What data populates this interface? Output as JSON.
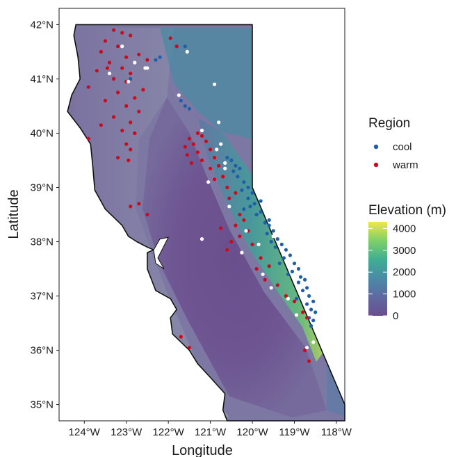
{
  "chart_data": {
    "type": "map",
    "xlabel": "Longitude",
    "ylabel": "Latitude",
    "xlim": [
      -124.6,
      -117.8
    ],
    "ylim": [
      34.7,
      42.3
    ],
    "x_ticks": [
      {
        "value": -124,
        "label": "124°W"
      },
      {
        "value": -123,
        "label": "123°W"
      },
      {
        "value": -122,
        "label": "122°W"
      },
      {
        "value": -121,
        "label": "121°W"
      },
      {
        "value": -120,
        "label": "120°W"
      },
      {
        "value": -119,
        "label": "119°W"
      },
      {
        "value": -118,
        "label": "118°W"
      }
    ],
    "y_ticks": [
      {
        "value": 35,
        "label": "35°N"
      },
      {
        "value": 36,
        "label": "36°N"
      },
      {
        "value": 37,
        "label": "37°N"
      },
      {
        "value": 38,
        "label": "38°N"
      },
      {
        "value": 39,
        "label": "39°N"
      },
      {
        "value": 40,
        "label": "40°N"
      },
      {
        "value": 41,
        "label": "41°N"
      },
      {
        "value": 42,
        "label": "42°N"
      }
    ],
    "grid": false,
    "legend_region": {
      "title": "Region",
      "entries": [
        {
          "label": "cool",
          "color": "#1f5fa8"
        },
        {
          "label": "warm",
          "color": "#cc0a1e"
        }
      ]
    },
    "legend_elevation": {
      "title": "Elevation (m)",
      "range": [
        0,
        4300
      ],
      "ticks": [
        {
          "value": 0,
          "label": "0"
        },
        {
          "value": 1000,
          "label": "1000"
        },
        {
          "value": 2000,
          "label": "2000"
        },
        {
          "value": 3000,
          "label": "3000"
        },
        {
          "value": 4000,
          "label": "4000"
        }
      ],
      "colors": [
        "#6b4e8f",
        "#5e6aa0",
        "#4a8ba6",
        "#3fae93",
        "#7fd068",
        "#f0e64a"
      ]
    },
    "series": [
      {
        "name": "cool",
        "color": "#1f5fa8",
        "points": [
          [
            -121.8,
            41.6
          ],
          [
            -121.6,
            41.6
          ],
          [
            -122.2,
            41.4
          ],
          [
            -122.3,
            41.35
          ],
          [
            -122.9,
            41.0
          ],
          [
            -121.7,
            40.6
          ],
          [
            -121.5,
            40.45
          ],
          [
            -121.6,
            40.5
          ],
          [
            -120.6,
            39.55
          ],
          [
            -120.5,
            39.5
          ],
          [
            -120.4,
            39.4
          ],
          [
            -120.3,
            39.35
          ],
          [
            -120.45,
            39.3
          ],
          [
            -120.2,
            39.1
          ],
          [
            -120.1,
            39.0
          ],
          [
            -120.25,
            38.95
          ],
          [
            -120.0,
            38.9
          ],
          [
            -120.1,
            38.8
          ],
          [
            -119.95,
            38.7
          ],
          [
            -120.05,
            38.65
          ],
          [
            -119.8,
            38.55
          ],
          [
            -119.9,
            38.5
          ],
          [
            -119.7,
            38.35
          ],
          [
            -119.6,
            38.3
          ],
          [
            -119.5,
            38.2
          ],
          [
            -119.65,
            38.15
          ],
          [
            -119.4,
            38.05
          ],
          [
            -119.3,
            37.95
          ],
          [
            -119.45,
            37.9
          ],
          [
            -119.2,
            37.85
          ],
          [
            -119.1,
            37.75
          ],
          [
            -119.25,
            37.7
          ],
          [
            -119.0,
            37.6
          ],
          [
            -118.9,
            37.5
          ],
          [
            -119.05,
            37.45
          ],
          [
            -118.85,
            37.35
          ],
          [
            -118.75,
            37.3
          ],
          [
            -118.9,
            37.25
          ],
          [
            -118.7,
            37.15
          ],
          [
            -118.8,
            37.1
          ],
          [
            -118.65,
            37.0
          ],
          [
            -118.55,
            36.9
          ],
          [
            -118.7,
            36.85
          ],
          [
            -118.6,
            36.75
          ],
          [
            -118.5,
            36.7
          ],
          [
            -118.65,
            36.6
          ],
          [
            -118.55,
            36.55
          ],
          [
            -118.6,
            36.45
          ],
          [
            -119.6,
            38.4
          ],
          [
            -120.2,
            38.6
          ],
          [
            -119.35,
            37.6
          ],
          [
            -119.15,
            37.4
          ],
          [
            -119.55,
            38.0
          ],
          [
            -118.95,
            36.95
          ],
          [
            -119.8,
            38.75
          ],
          [
            -120.35,
            39.2
          ]
        ]
      },
      {
        "name": "warm",
        "color": "#cc0a1e",
        "points": [
          [
            -123.3,
            41.9
          ],
          [
            -123.1,
            41.85
          ],
          [
            -122.9,
            41.8
          ],
          [
            -123.5,
            41.7
          ],
          [
            -123.2,
            41.6
          ],
          [
            -123.6,
            41.5
          ],
          [
            -123.0,
            41.4
          ],
          [
            -122.7,
            41.45
          ],
          [
            -122.5,
            41.35
          ],
          [
            -123.4,
            41.3
          ],
          [
            -123.1,
            41.2
          ],
          [
            -123.7,
            41.15
          ],
          [
            -122.9,
            41.1
          ],
          [
            -123.3,
            41.0
          ],
          [
            -123.0,
            40.95
          ],
          [
            -123.9,
            40.85
          ],
          [
            -122.6,
            40.8
          ],
          [
            -123.2,
            40.75
          ],
          [
            -122.8,
            40.65
          ],
          [
            -123.5,
            40.6
          ],
          [
            -123.0,
            40.5
          ],
          [
            -122.7,
            40.4
          ],
          [
            -123.3,
            40.3
          ],
          [
            -122.9,
            40.2
          ],
          [
            -123.6,
            40.15
          ],
          [
            -123.1,
            40.05
          ],
          [
            -122.8,
            40.0
          ],
          [
            -123.9,
            39.9
          ],
          [
            -123.0,
            39.8
          ],
          [
            -122.9,
            39.7
          ],
          [
            -123.2,
            39.55
          ],
          [
            -122.95,
            39.5
          ],
          [
            -122.7,
            38.7
          ],
          [
            -122.9,
            38.65
          ],
          [
            -122.5,
            38.5
          ],
          [
            -121.3,
            40.0
          ],
          [
            -121.2,
            39.95
          ],
          [
            -121.5,
            39.9
          ],
          [
            -121.1,
            39.85
          ],
          [
            -121.4,
            39.8
          ],
          [
            -121.6,
            39.75
          ],
          [
            -121.0,
            39.7
          ],
          [
            -121.3,
            39.65
          ],
          [
            -121.55,
            39.6
          ],
          [
            -120.9,
            39.55
          ],
          [
            -121.2,
            39.5
          ],
          [
            -121.45,
            39.45
          ],
          [
            -120.8,
            39.4
          ],
          [
            -121.0,
            39.35
          ],
          [
            -120.7,
            39.2
          ],
          [
            -120.9,
            39.15
          ],
          [
            -120.6,
            39.0
          ],
          [
            -120.4,
            38.9
          ],
          [
            -120.55,
            38.8
          ],
          [
            -120.3,
            38.5
          ],
          [
            -120.2,
            38.4
          ],
          [
            -120.4,
            38.3
          ],
          [
            -120.1,
            38.2
          ],
          [
            -120.3,
            38.1
          ],
          [
            -120.5,
            38.0
          ],
          [
            -120.0,
            37.95
          ],
          [
            -120.6,
            37.85
          ],
          [
            -119.8,
            37.7
          ],
          [
            -119.6,
            37.55
          ],
          [
            -119.9,
            37.5
          ],
          [
            -119.7,
            37.3
          ],
          [
            -119.4,
            37.2
          ],
          [
            -119.2,
            37.0
          ],
          [
            -119.0,
            36.9
          ],
          [
            -118.8,
            36.7
          ],
          [
            -118.7,
            36.6
          ],
          [
            -118.75,
            36.0
          ],
          [
            -118.65,
            35.8
          ],
          [
            -121.5,
            36.05
          ],
          [
            -121.7,
            36.25
          ],
          [
            -121.95,
            41.75
          ],
          [
            -121.8,
            41.6
          ],
          [
            -123.45,
            41.2
          ],
          [
            -120.75,
            38.25
          ]
        ]
      },
      {
        "name": "",
        "color": "#ffffff",
        "points": [
          [
            -123.1,
            41.6
          ],
          [
            -122.8,
            41.3
          ],
          [
            -122.5,
            41.2
          ],
          [
            -123.4,
            41.1
          ],
          [
            -122.95,
            40.95
          ],
          [
            -121.55,
            41.5
          ],
          [
            -120.9,
            40.9
          ],
          [
            -121.75,
            40.7
          ],
          [
            -120.8,
            40.2
          ],
          [
            -121.2,
            40.05
          ],
          [
            -120.75,
            39.8
          ],
          [
            -120.85,
            39.7
          ],
          [
            -120.65,
            39.35
          ],
          [
            -121.05,
            39.1
          ],
          [
            -120.55,
            38.65
          ],
          [
            -120.15,
            38.2
          ],
          [
            -119.85,
            37.95
          ],
          [
            -120.25,
            37.8
          ],
          [
            -119.75,
            37.4
          ],
          [
            -119.55,
            37.15
          ],
          [
            -119.15,
            36.95
          ],
          [
            -118.95,
            36.65
          ],
          [
            -118.55,
            36.15
          ],
          [
            -118.7,
            36.05
          ],
          [
            -122.55,
            41.2
          ],
          [
            -120.65,
            39.45
          ],
          [
            -121.2,
            38.05
          ],
          [
            -119.5,
            38.1
          ]
        ]
      }
    ]
  }
}
